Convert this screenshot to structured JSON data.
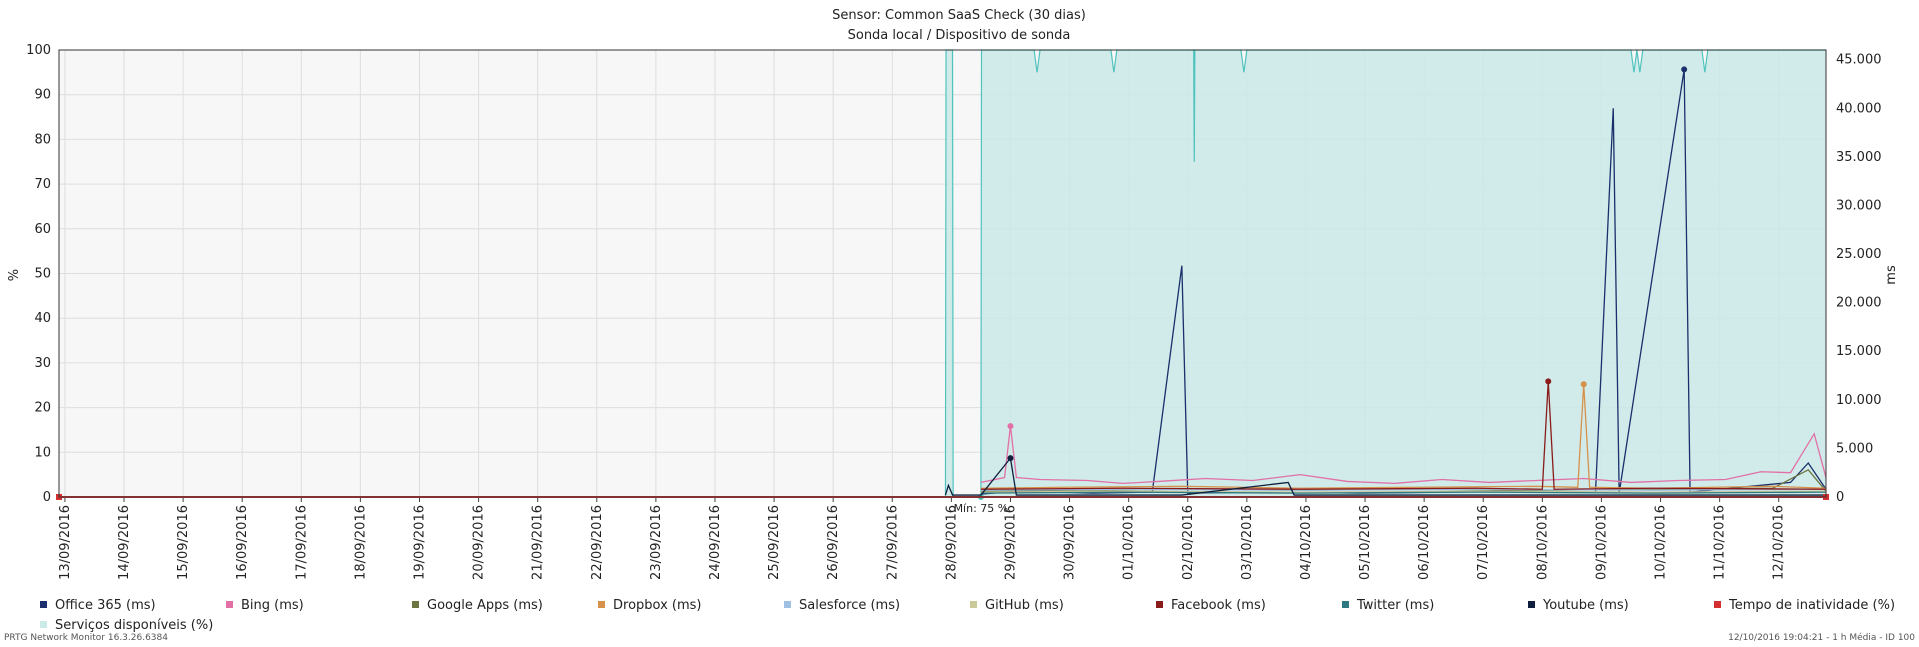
{
  "chart_data": {
    "type": "line",
    "title": "Sensor: Common SaaS Check (30 dias)",
    "subtitle": "Sonda local / Dispositivo de sonda",
    "ylabel_left": "%",
    "ylabel_right": "ms",
    "ylim_left": [
      0,
      100
    ],
    "ylim_right": [
      0,
      46000
    ],
    "yticks_left": [
      "0",
      "10",
      "20",
      "30",
      "40",
      "50",
      "60",
      "70",
      "80",
      "90",
      "100"
    ],
    "yticks_right": [
      "0",
      "5.000",
      "10.000",
      "15.000",
      "20.000",
      "25.000",
      "30.000",
      "35.000",
      "40.000",
      "45.000"
    ],
    "x_labels": [
      "13/09/2016",
      "14/09/2016",
      "15/09/2016",
      "16/09/2016",
      "17/09/2016",
      "18/09/2016",
      "19/09/2016",
      "20/09/2016",
      "21/09/2016",
      "22/09/2016",
      "23/09/2016",
      "24/09/2016",
      "25/09/2016",
      "26/09/2016",
      "27/09/2016",
      "28/09/2016",
      "29/09/2016",
      "30/09/2016",
      "01/10/2016",
      "02/10/2016",
      "03/10/2016",
      "04/10/2016",
      "05/10/2016",
      "06/10/2016",
      "07/10/2016",
      "08/10/2016",
      "09/10/2016",
      "10/10/2016",
      "11/10/2016",
      "12/10/2016"
    ],
    "x_range_days": [
      0,
      29.9
    ],
    "grid": true,
    "legend_position": "bottom",
    "annotation": "Mín: 75 %",
    "availability_series": {
      "name": "Serviços disponíveis (%)",
      "color": "#4fc3bd",
      "fill": "#cbe9e7",
      "points": [
        [
          15.0,
          0
        ],
        [
          15.01,
          100
        ],
        [
          15.12,
          100
        ],
        [
          15.13,
          0
        ],
        [
          15.6,
          0
        ],
        [
          15.61,
          100
        ],
        [
          16.5,
          100
        ],
        [
          16.55,
          95
        ],
        [
          16.6,
          100
        ],
        [
          17.8,
          100
        ],
        [
          17.85,
          95
        ],
        [
          17.9,
          100
        ],
        [
          19.2,
          100
        ],
        [
          19.21,
          75
        ],
        [
          19.22,
          100
        ],
        [
          20.0,
          100
        ],
        [
          20.05,
          95
        ],
        [
          20.1,
          100
        ],
        [
          26.6,
          100
        ],
        [
          26.65,
          95
        ],
        [
          26.7,
          100
        ],
        [
          26.75,
          95
        ],
        [
          26.8,
          100
        ],
        [
          27.8,
          100
        ],
        [
          27.85,
          95
        ],
        [
          27.9,
          100
        ],
        [
          29.9,
          100
        ]
      ]
    },
    "series": [
      {
        "name": "Office 365 (ms)",
        "color": "#1a2f6b",
        "points": [
          [
            15.6,
            300
          ],
          [
            16.2,
            600
          ],
          [
            16.8,
            500
          ],
          [
            17.5,
            400
          ],
          [
            18.5,
            500
          ],
          [
            19.0,
            23800
          ],
          [
            19.1,
            400
          ],
          [
            20.5,
            500
          ],
          [
            22.0,
            400
          ],
          [
            23.5,
            500
          ],
          [
            24.5,
            600
          ],
          [
            26.0,
            500
          ],
          [
            26.3,
            40000
          ],
          [
            26.4,
            400
          ],
          [
            27.5,
            44000
          ],
          [
            27.6,
            500
          ],
          [
            29.3,
            1500
          ],
          [
            29.6,
            3500
          ],
          [
            29.9,
            800
          ]
        ]
      },
      {
        "name": "Bing (ms)",
        "color": "#e26fa6",
        "points": [
          [
            15.6,
            1500
          ],
          [
            16.0,
            2000
          ],
          [
            16.1,
            7300
          ],
          [
            16.2,
            2000
          ],
          [
            16.6,
            1800
          ],
          [
            17.4,
            1700
          ],
          [
            18.0,
            1400
          ],
          [
            18.6,
            1600
          ],
          [
            19.4,
            1900
          ],
          [
            20.2,
            1700
          ],
          [
            21.0,
            2300
          ],
          [
            21.8,
            1600
          ],
          [
            22.6,
            1400
          ],
          [
            23.4,
            1800
          ],
          [
            24.2,
            1500
          ],
          [
            25.0,
            1700
          ],
          [
            25.8,
            1900
          ],
          [
            26.6,
            1500
          ],
          [
            27.4,
            1700
          ],
          [
            28.2,
            1800
          ],
          [
            28.8,
            2600
          ],
          [
            29.3,
            2500
          ],
          [
            29.7,
            6500
          ],
          [
            29.9,
            2000
          ]
        ]
      },
      {
        "name": "Google Apps (ms)",
        "color": "#6d7540",
        "points": [
          [
            15.6,
            600
          ],
          [
            17.0,
            700
          ],
          [
            19.0,
            800
          ],
          [
            21.0,
            700
          ],
          [
            23.0,
            800
          ],
          [
            25.0,
            700
          ],
          [
            27.0,
            800
          ],
          [
            29.0,
            900
          ],
          [
            29.6,
            2800
          ],
          [
            29.9,
            600
          ]
        ]
      },
      {
        "name": "Dropbox (ms)",
        "color": "#d6924b",
        "points": [
          [
            15.6,
            900
          ],
          [
            17.0,
            1000
          ],
          [
            19.0,
            1100
          ],
          [
            21.0,
            900
          ],
          [
            23.0,
            1000
          ],
          [
            25.0,
            1100
          ],
          [
            25.7,
            1000
          ],
          [
            25.8,
            11600
          ],
          [
            25.9,
            1000
          ],
          [
            27.0,
            900
          ],
          [
            29.0,
            1100
          ],
          [
            29.9,
            900
          ]
        ]
      },
      {
        "name": "Salesforce (ms)",
        "color": "#9fbfe3",
        "points": [
          [
            15.6,
            700
          ],
          [
            18.0,
            800
          ],
          [
            21.0,
            700
          ],
          [
            24.0,
            800
          ],
          [
            27.0,
            700
          ],
          [
            29.9,
            800
          ]
        ]
      },
      {
        "name": "GitHub (ms)",
        "color": "#c9c99a",
        "points": [
          [
            15.6,
            500
          ],
          [
            18.0,
            600
          ],
          [
            21.0,
            500
          ],
          [
            24.0,
            600
          ],
          [
            27.0,
            500
          ],
          [
            29.9,
            600
          ]
        ]
      },
      {
        "name": "Facebook (ms)",
        "color": "#8a1b1b",
        "points": [
          [
            15.6,
            800
          ],
          [
            18.0,
            900
          ],
          [
            21.0,
            800
          ],
          [
            24.0,
            900
          ],
          [
            25.1,
            800
          ],
          [
            25.2,
            11900
          ],
          [
            25.3,
            800
          ],
          [
            27.0,
            900
          ],
          [
            29.9,
            800
          ]
        ]
      },
      {
        "name": "Twitter (ms)",
        "color": "#2e7a82",
        "points": [
          [
            15.6,
            400
          ],
          [
            18.0,
            500
          ],
          [
            21.0,
            400
          ],
          [
            24.0,
            500
          ],
          [
            27.0,
            400
          ],
          [
            29.9,
            500
          ]
        ]
      },
      {
        "name": "Youtube (ms)",
        "color": "#0f1f3d",
        "points": [
          [
            15.0,
            200
          ],
          [
            15.05,
            1200
          ],
          [
            15.12,
            200
          ],
          [
            15.6,
            200
          ],
          [
            16.1,
            4000
          ],
          [
            16.2,
            200
          ],
          [
            19.0,
            200
          ],
          [
            20.8,
            1500
          ],
          [
            20.9,
            200
          ],
          [
            24.0,
            200
          ],
          [
            27.5,
            200
          ],
          [
            29.9,
            200
          ]
        ]
      },
      {
        "name": "Tempo de inatividade (%)",
        "color": "#d32f2f",
        "points": [
          [
            0,
            0
          ],
          [
            29.9,
            0
          ]
        ]
      }
    ]
  },
  "legend": {
    "items": [
      {
        "label": "Office 365 (ms)",
        "color": "#1a2f6b"
      },
      {
        "label": "Bing (ms)",
        "color": "#e26fa6"
      },
      {
        "label": "Google Apps (ms)",
        "color": "#6d7540"
      },
      {
        "label": "Dropbox (ms)",
        "color": "#d6924b"
      },
      {
        "label": "Salesforce (ms)",
        "color": "#9fbfe3"
      },
      {
        "label": "GitHub (ms)",
        "color": "#c9c99a"
      },
      {
        "label": "Facebook (ms)",
        "color": "#8a1b1b"
      },
      {
        "label": "Twitter (ms)",
        "color": "#2e7a82"
      },
      {
        "label": "Youtube (ms)",
        "color": "#0f1f3d"
      },
      {
        "label": "Tempo de inatividade (%)",
        "color": "#d32f2f"
      },
      {
        "label": "Serviços disponíveis (%)",
        "color": "#cbe9e7"
      }
    ]
  },
  "footer": {
    "left": "PRTG Network Monitor 16.3.26.6384",
    "right": "12/10/2016 19:04:21 - 1 h Média - ID 100"
  }
}
